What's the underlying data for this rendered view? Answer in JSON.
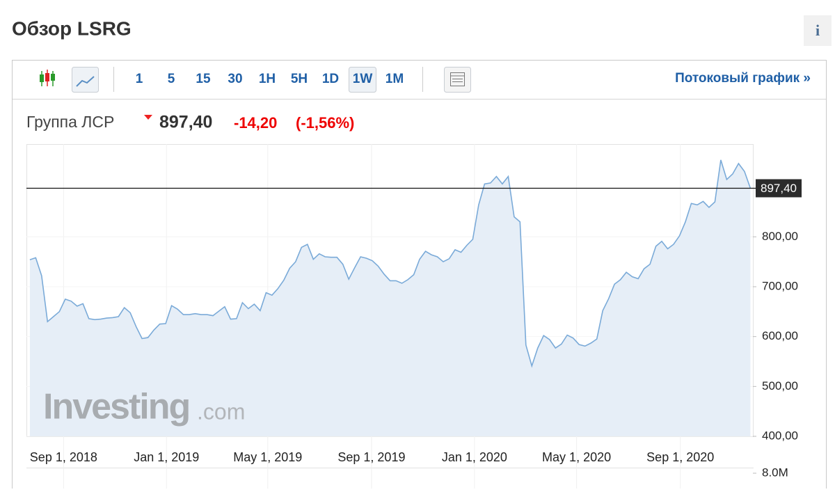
{
  "header": {
    "title": "Обзор LSRG",
    "info": "i"
  },
  "toolbar": {
    "intervals": [
      "1",
      "5",
      "15",
      "30",
      "1H",
      "5H",
      "1D",
      "1W",
      "1M"
    ],
    "active": "1W",
    "link": "Потоковый график »"
  },
  "quote": {
    "name": "Группа ЛСР",
    "price": "897,40",
    "change": "-14,20",
    "change_pct": "(-1,56%)"
  },
  "watermark": {
    "brand": "Investing",
    "suffix": ".com"
  },
  "chart_data": {
    "type": "area",
    "color": "#7aaad8",
    "fill": "#e6eef7",
    "x": [
      "2018-07-23",
      "2018-07-30",
      "2018-08-06",
      "2018-08-13",
      "2018-08-20",
      "2018-08-27",
      "2018-09-03",
      "2018-09-10",
      "2018-09-17",
      "2018-09-24",
      "2018-10-01",
      "2018-10-08",
      "2018-10-15",
      "2018-10-22",
      "2018-10-29",
      "2018-11-05",
      "2018-11-12",
      "2018-11-19",
      "2018-11-26",
      "2018-12-03",
      "2018-12-10",
      "2018-12-17",
      "2018-12-24",
      "2018-12-31",
      "2019-01-07",
      "2019-01-14",
      "2019-01-21",
      "2019-01-28",
      "2019-02-04",
      "2019-02-11",
      "2019-02-18",
      "2019-02-25",
      "2019-03-04",
      "2019-03-11",
      "2019-03-18",
      "2019-03-25",
      "2019-04-01",
      "2019-04-08",
      "2019-04-15",
      "2019-04-22",
      "2019-04-29",
      "2019-05-06",
      "2019-05-13",
      "2019-05-20",
      "2019-05-27",
      "2019-06-03",
      "2019-06-10",
      "2019-06-17",
      "2019-06-24",
      "2019-07-01",
      "2019-07-08",
      "2019-07-15",
      "2019-07-22",
      "2019-07-29",
      "2019-08-05",
      "2019-08-12",
      "2019-08-19",
      "2019-08-26",
      "2019-09-02",
      "2019-09-09",
      "2019-09-16",
      "2019-09-23",
      "2019-09-30",
      "2019-10-07",
      "2019-10-14",
      "2019-10-21",
      "2019-10-28",
      "2019-11-04",
      "2019-11-11",
      "2019-11-18",
      "2019-11-25",
      "2019-12-02",
      "2019-12-09",
      "2019-12-16",
      "2019-12-23",
      "2019-12-30",
      "2020-01-06",
      "2020-01-13",
      "2020-01-20",
      "2020-01-27",
      "2020-02-03",
      "2020-02-10",
      "2020-02-17",
      "2020-02-24",
      "2020-03-02",
      "2020-03-09",
      "2020-03-16",
      "2020-03-23",
      "2020-03-30",
      "2020-04-06",
      "2020-04-13",
      "2020-04-20",
      "2020-04-27",
      "2020-05-04",
      "2020-05-11",
      "2020-05-18",
      "2020-05-25",
      "2020-06-01",
      "2020-06-08",
      "2020-06-15",
      "2020-06-22",
      "2020-06-29",
      "2020-07-06",
      "2020-07-13",
      "2020-07-20",
      "2020-07-27",
      "2020-08-03",
      "2020-08-10",
      "2020-08-17",
      "2020-08-24",
      "2020-08-31",
      "2020-09-07",
      "2020-09-14",
      "2020-09-21",
      "2020-09-28",
      "2020-10-05",
      "2020-10-12",
      "2020-10-19",
      "2020-10-26",
      "2020-11-02",
      "2020-11-09",
      "2020-11-16",
      "2020-11-23"
    ],
    "values": [
      754,
      758,
      722,
      630,
      640,
      650,
      675,
      671,
      661,
      666,
      636,
      634,
      635,
      637,
      638,
      640,
      658,
      648,
      620,
      596,
      598,
      613,
      625,
      626,
      662,
      655,
      644,
      644,
      646,
      644,
      644,
      642,
      651,
      660,
      635,
      636,
      668,
      656,
      665,
      652,
      688,
      683,
      696,
      713,
      737,
      750,
      779,
      785,
      755,
      766,
      760,
      759,
      759,
      745,
      715,
      738,
      760,
      757,
      752,
      741,
      725,
      712,
      712,
      707,
      714,
      724,
      755,
      771,
      764,
      760,
      750,
      756,
      774,
      769,
      783,
      795,
      864,
      906,
      908,
      921,
      906,
      921,
      840,
      830,
      583,
      541,
      577,
      602,
      594,
      577,
      585,
      603,
      597,
      584,
      581,
      587,
      595,
      652,
      676,
      705,
      714,
      729,
      720,
      716,
      736,
      745,
      781,
      791,
      776,
      785,
      802,
      830,
      867,
      864,
      871,
      859,
      870,
      954,
      915,
      926,
      947,
      931,
      897.4
    ],
    "xlim": [
      "2018-07-19",
      "2020-11-26"
    ],
    "xticks": [
      {
        "value": "2018-09-01",
        "label": "Sep 1, 2018"
      },
      {
        "value": "2019-01-01",
        "label": "Jan 1, 2019"
      },
      {
        "value": "2019-05-01",
        "label": "May 1, 2019"
      },
      {
        "value": "2019-09-01",
        "label": "Sep 1, 2019"
      },
      {
        "value": "2020-01-01",
        "label": "Jan 1, 2020"
      },
      {
        "value": "2020-05-01",
        "label": "May 1, 2020"
      },
      {
        "value": "2020-09-01",
        "label": "Sep 1, 2020"
      }
    ],
    "ylim": [
      400,
      986
    ],
    "yticks": [
      {
        "value": 400,
        "label": "400,00"
      },
      {
        "value": 500,
        "label": "500,00"
      },
      {
        "value": 600,
        "label": "600,00"
      },
      {
        "value": 700,
        "label": "700,00"
      },
      {
        "value": 800,
        "label": "800,00"
      }
    ],
    "last_price": {
      "value": 897.4,
      "label": "897,40"
    },
    "grid": true,
    "volume_ticks": [
      {
        "value": 8000000,
        "label": "8.0M"
      }
    ]
  }
}
